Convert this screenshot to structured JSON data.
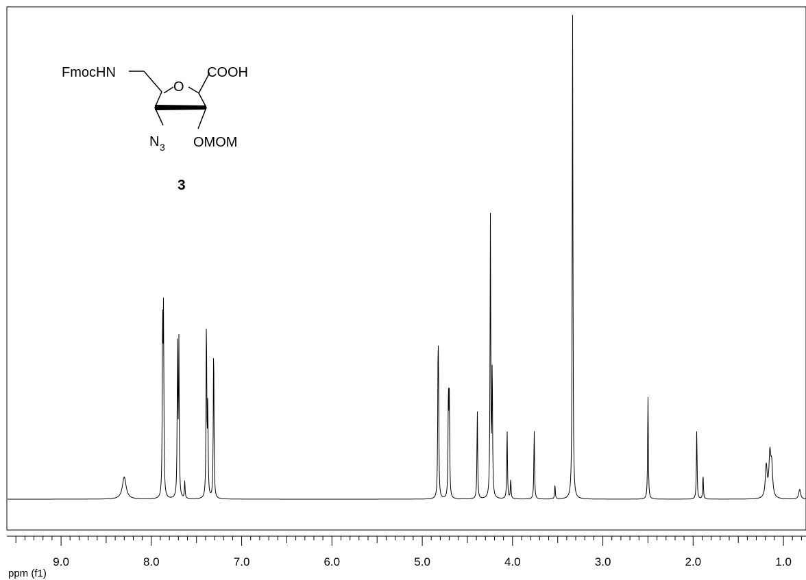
{
  "chart_data": {
    "type": "line",
    "xlabel": "ppm (f1)",
    "x_reversed": true,
    "xlim": [
      9.6,
      0.75
    ],
    "x_ticks": [
      "9.0",
      "8.0",
      "7.0",
      "6.0",
      "5.0",
      "4.0",
      "3.0",
      "2.0",
      "1.0"
    ],
    "x_tick_values": [
      9.0,
      8.0,
      7.0,
      6.0,
      5.0,
      4.0,
      3.0,
      2.0,
      1.0
    ],
    "grid": false,
    "peaks": [
      {
        "ppm": 8.3,
        "height": 0.045
      },
      {
        "ppm": 7.875,
        "height": 0.35
      },
      {
        "ppm": 7.865,
        "height": 0.35
      },
      {
        "ppm": 7.71,
        "height": 0.3
      },
      {
        "ppm": 7.695,
        "height": 0.31
      },
      {
        "ppm": 7.63,
        "height": 0.035
      },
      {
        "ppm": 7.39,
        "height": 0.36
      },
      {
        "ppm": 7.375,
        "height": 0.18
      },
      {
        "ppm": 7.31,
        "height": 0.32
      },
      {
        "ppm": 4.825,
        "height": 0.22
      },
      {
        "ppm": 4.82,
        "height": 0.19
      },
      {
        "ppm": 4.71,
        "height": 0.21
      },
      {
        "ppm": 4.7,
        "height": 0.19
      },
      {
        "ppm": 4.39,
        "height": 0.18
      },
      {
        "ppm": 4.245,
        "height": 0.57
      },
      {
        "ppm": 4.225,
        "height": 0.26
      },
      {
        "ppm": 4.06,
        "height": 0.14
      },
      {
        "ppm": 4.02,
        "height": 0.04
      },
      {
        "ppm": 3.76,
        "height": 0.14
      },
      {
        "ppm": 3.53,
        "height": 0.03
      },
      {
        "ppm": 3.335,
        "height": 1.0
      },
      {
        "ppm": 2.5,
        "height": 0.21
      },
      {
        "ppm": 1.96,
        "height": 0.14
      },
      {
        "ppm": 1.89,
        "height": 0.05
      },
      {
        "ppm": 1.19,
        "height": 0.065
      },
      {
        "ppm": 1.15,
        "height": 0.085
      },
      {
        "ppm": 1.13,
        "height": 0.06
      },
      {
        "ppm": 0.82,
        "height": 0.02
      }
    ]
  },
  "structure": {
    "fmoc_label": "FmocHN",
    "ring_o_label": "O",
    "cooh_label": "COOH",
    "azide_label": "N",
    "azide_subscript": "3",
    "omom_label": "OMOM",
    "compound_number": "3"
  }
}
